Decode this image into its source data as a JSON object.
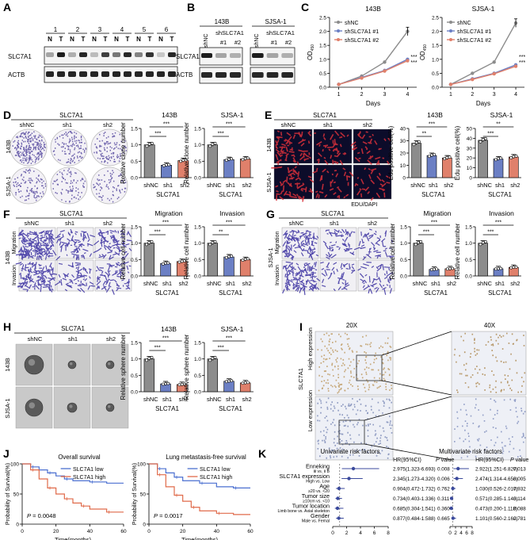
{
  "panels": {
    "A": {
      "label": "A",
      "numbers": [
        "1",
        "2",
        "3",
        "4",
        "5",
        "6"
      ],
      "nt": [
        "N",
        "T"
      ],
      "rows": [
        "SLC7A1",
        "ACTB"
      ]
    },
    "B": {
      "label": "B",
      "cell1": "143B",
      "cell2": "SJSA-1",
      "lanes": [
        "shNC",
        "shSLC7A1",
        "#1",
        "#2"
      ],
      "rows": [
        "SLC7A1",
        "ACTB"
      ]
    },
    "C": {
      "label": "C",
      "title1": "143B",
      "title2": "SJSA-1",
      "legend": [
        "shNC",
        "shSLC7A1 #1",
        "shSLC7A1 #2"
      ],
      "xlabel": "Days",
      "ylabel": "OD450",
      "sig": "***"
    },
    "D": {
      "label": "D",
      "title": "SLC7A1",
      "cols": [
        "shNC",
        "sh1",
        "sh2"
      ],
      "rows": [
        "143B",
        "SJSA-1"
      ],
      "ylabel": "Relative clone number",
      "xlabel": "SLC7A1",
      "t1": "143B",
      "t2": "SJSA-1"
    },
    "E": {
      "label": "E",
      "title": "SLC7A1",
      "cols": [
        "shNC",
        "sh1",
        "sh2"
      ],
      "rows": [
        "143B",
        "SJSA-1"
      ],
      "stain1": "EDU",
      "stain2": "/DAPI",
      "ylabel": "Edu positive cell(%)",
      "xlabel": "SLC7A1",
      "t1": "143B",
      "t2": "SJSA-1"
    },
    "F": {
      "label": "F",
      "title": "SLC7A1",
      "cols": [
        "shNC",
        "sh1",
        "sh2"
      ],
      "cell": "143B",
      "rows": [
        "Migration",
        "Invasion"
      ],
      "ylabel": "Relative cell number",
      "xlabel": "SLC7A1",
      "t1": "Migration",
      "t2": "Invasion"
    },
    "G": {
      "label": "G",
      "title": "SLC7A1",
      "cols": [
        "shNC",
        "sh1",
        "sh2"
      ],
      "cell": "SJSA-1",
      "rows": [
        "Migration",
        "Invasion"
      ],
      "ylabel": "Relative cell number",
      "xlabel": "SLC7A1",
      "t1": "Migration",
      "t2": "Invasion"
    },
    "H": {
      "label": "H",
      "title": "SLC7A1",
      "cols": [
        "shNC",
        "sh1",
        "sh2"
      ],
      "rows": [
        "143B",
        "SJSA-1"
      ],
      "ylabel": "Relative sphere number",
      "xlabel": "SLC7A1",
      "t1": "143B",
      "t2": "SJSA-1"
    },
    "I": {
      "label": "I",
      "cols": [
        "20X",
        "40X"
      ],
      "side": "SLC7A1",
      "rows": [
        "High expression",
        "Low expression"
      ]
    },
    "J": {
      "label": "J",
      "t1": "Overall survival",
      "t2": "Lung metastasis-free survival",
      "legend": [
        "SLC7A1 low",
        "SLC7A1 high"
      ],
      "ylabel": "Probability of Survival(%)",
      "xlabel": "Time(months)",
      "p1": "= 0.0048",
      "p2": "= 0.0017",
      "pletter": "P"
    },
    "K": {
      "label": "K",
      "t1": "Univariate risk factors",
      "t2": "Multivariate risk factors",
      "hr_head": "HR(95%CI)",
      "p_head": "value",
      "p_letter": "P"
    }
  },
  "colors": {
    "nc": "#8c8c8c",
    "sh1": "#6b7fc4",
    "sh2": "#e0806b",
    "low": "#4a6fd0",
    "high": "#e06a4a",
    "stain": "#3a2fa0"
  },
  "chart_data": [
    {
      "id": "C-143B",
      "type": "line",
      "title": "143B",
      "xlabel": "Days",
      "ylabel": "OD450",
      "x": [
        1,
        2,
        3,
        4
      ],
      "ylim": [
        0,
        2.5
      ],
      "yticks": [
        0,
        0.5,
        1.0,
        1.5,
        2.0,
        2.5
      ],
      "series": [
        {
          "name": "shNC",
          "values": [
            0.1,
            0.4,
            0.9,
            2.0
          ]
        },
        {
          "name": "shSLC7A1 #1",
          "values": [
            0.1,
            0.35,
            0.6,
            1.0
          ]
        },
        {
          "name": "shSLC7A1 #2",
          "values": [
            0.1,
            0.33,
            0.58,
            0.95
          ]
        }
      ]
    },
    {
      "id": "C-SJSA1",
      "type": "line",
      "title": "SJSA-1",
      "xlabel": "Days",
      "ylabel": "OD450",
      "x": [
        1,
        2,
        3,
        4
      ],
      "ylim": [
        0,
        2.5
      ],
      "yticks": [
        0,
        0.5,
        1.0,
        1.5,
        2.0,
        2.5
      ],
      "series": [
        {
          "name": "shNC",
          "values": [
            0.1,
            0.5,
            0.9,
            2.3
          ]
        },
        {
          "name": "shSLC7A1 #1",
          "values": [
            0.1,
            0.3,
            0.5,
            0.8
          ]
        },
        {
          "name": "shSLC7A1 #2",
          "values": [
            0.1,
            0.28,
            0.48,
            0.75
          ]
        }
      ]
    },
    {
      "id": "D-143B",
      "type": "bar",
      "title": "143B",
      "categories": [
        "shNC",
        "sh1",
        "sh2"
      ],
      "values": [
        1.0,
        0.38,
        0.52
      ],
      "ylim": [
        0,
        1.5
      ],
      "yticks": [
        0,
        0.5,
        1.0,
        1.5
      ],
      "sig": [
        "***",
        "***"
      ]
    },
    {
      "id": "D-SJSA1",
      "type": "bar",
      "title": "SJSA-1",
      "categories": [
        "shNC",
        "sh1",
        "sh2"
      ],
      "values": [
        1.0,
        0.55,
        0.57
      ],
      "ylim": [
        0,
        1.5
      ],
      "yticks": [
        0,
        0.5,
        1.0,
        1.5
      ],
      "sig": [
        "***",
        "***"
      ]
    },
    {
      "id": "E-143B",
      "type": "bar",
      "title": "143B",
      "categories": [
        "shNC",
        "sh1",
        "sh2"
      ],
      "values": [
        28,
        18,
        16
      ],
      "ylim": [
        0,
        40
      ],
      "yticks": [
        0,
        10,
        20,
        30,
        40
      ],
      "sig": [
        "***",
        "**"
      ]
    },
    {
      "id": "E-SJSA1",
      "type": "bar",
      "title": "SJSA-1",
      "categories": [
        "shNC",
        "sh1",
        "sh2"
      ],
      "values": [
        38,
        19,
        21
      ],
      "ylim": [
        0,
        50
      ],
      "yticks": [
        0,
        10,
        20,
        30,
        40,
        50
      ],
      "sig": [
        "**",
        "***"
      ]
    },
    {
      "id": "F-Migration",
      "type": "bar",
      "title": "Migration",
      "categories": [
        "shNC",
        "sh1",
        "sh2"
      ],
      "values": [
        1.0,
        0.38,
        0.44
      ],
      "ylim": [
        0,
        1.5
      ],
      "yticks": [
        0,
        0.5,
        1.0,
        1.5
      ],
      "sig": [
        "***",
        "***"
      ]
    },
    {
      "id": "F-Invasion",
      "type": "bar",
      "title": "Invasion",
      "categories": [
        "shNC",
        "sh1",
        "sh2"
      ],
      "values": [
        1.0,
        0.58,
        0.5
      ],
      "ylim": [
        0,
        1.5
      ],
      "yticks": [
        0,
        0.5,
        1.0,
        1.5
      ],
      "sig": [
        "***",
        "**"
      ]
    },
    {
      "id": "G-Migration",
      "type": "bar",
      "title": "Migration",
      "categories": [
        "shNC",
        "sh1",
        "sh2"
      ],
      "values": [
        1.0,
        0.2,
        0.22
      ],
      "ylim": [
        0,
        1.5
      ],
      "yticks": [
        0,
        0.5,
        1.0,
        1.5
      ],
      "sig": [
        "***",
        "***"
      ]
    },
    {
      "id": "G-Invasion",
      "type": "bar",
      "title": "Invasion",
      "categories": [
        "shNC",
        "sh1",
        "sh2"
      ],
      "values": [
        1.0,
        0.22,
        0.26
      ],
      "ylim": [
        0,
        1.5
      ],
      "yticks": [
        0,
        0.5,
        1.0,
        1.5
      ],
      "sig": [
        "***",
        "***"
      ]
    },
    {
      "id": "H-143B",
      "type": "bar",
      "title": "143B",
      "categories": [
        "shNC",
        "sh1",
        "sh2"
      ],
      "values": [
        1.0,
        0.24,
        0.22
      ],
      "ylim": [
        0,
        1.5
      ],
      "yticks": [
        0,
        0.5,
        1.0,
        1.5
      ],
      "sig": [
        "***",
        "***"
      ]
    },
    {
      "id": "H-SJSA1",
      "type": "bar",
      "title": "SJSA-1",
      "categories": [
        "shNC",
        "sh1",
        "sh2"
      ],
      "values": [
        1.0,
        0.32,
        0.27
      ],
      "ylim": [
        0,
        1.5
      ],
      "yticks": [
        0,
        0.5,
        1.0,
        1.5
      ],
      "sig": [
        "***",
        "***"
      ]
    },
    {
      "id": "J-OS",
      "type": "line",
      "title": "Overall survival",
      "xlabel": "Time(months)",
      "ylabel": "Probability of Survival(%)",
      "xlim": [
        0,
        60
      ],
      "ylim": [
        0,
        100
      ],
      "xticks": [
        0,
        20,
        40,
        60
      ],
      "yticks": [
        0,
        50,
        100
      ],
      "series": [
        {
          "name": "SLC7A1 low",
          "x": [
            0,
            5,
            10,
            15,
            20,
            25,
            30,
            40,
            50,
            60
          ],
          "values": [
            100,
            95,
            90,
            85,
            80,
            75,
            72,
            70,
            68,
            68
          ]
        },
        {
          "name": "SLC7A1 high",
          "x": [
            0,
            5,
            10,
            15,
            20,
            25,
            30,
            35,
            40,
            50,
            60
          ],
          "values": [
            100,
            90,
            75,
            60,
            50,
            42,
            35,
            30,
            25,
            20,
            20
          ]
        }
      ],
      "p": "0.0048"
    },
    {
      "id": "J-LMFS",
      "type": "line",
      "title": "Lung metastasis-free survival",
      "xlabel": "Time(months)",
      "ylabel": "Probability of Survival(%)",
      "xlim": [
        0,
        60
      ],
      "ylim": [
        0,
        100
      ],
      "xticks": [
        0,
        20,
        40,
        60
      ],
      "yticks": [
        0,
        50,
        100
      ],
      "series": [
        {
          "name": "SLC7A1 low",
          "x": [
            0,
            5,
            10,
            15,
            20,
            30,
            40,
            50,
            60
          ],
          "values": [
            100,
            92,
            85,
            78,
            72,
            68,
            62,
            60,
            60
          ]
        },
        {
          "name": "SLC7A1 high",
          "x": [
            0,
            5,
            10,
            15,
            20,
            25,
            30,
            40,
            50,
            60
          ],
          "values": [
            100,
            82,
            62,
            48,
            38,
            28,
            22,
            18,
            16,
            16
          ]
        }
      ],
      "p": "0.0017"
    },
    {
      "id": "K-uni",
      "type": "forest",
      "title": "Univariate risk factors",
      "xlim": [
        0,
        8
      ],
      "xticks": [
        0,
        2,
        4,
        6,
        8
      ],
      "rows": [
        {
          "name": "Enneking",
          "sub": "Ⅲ vs. Ⅱ B",
          "hr": 2.975,
          "ci": [
            1.323,
            6.693
          ],
          "text": "2.975(1.323-6.693)",
          "p": "0.008"
        },
        {
          "name": "SLC7A1 expression",
          "sub": "High vs. Low",
          "hr": 2.345,
          "ci": [
            1.273,
            4.32
          ],
          "text": "2.345(1.273-4.320)",
          "p": "0.006"
        },
        {
          "name": "Age",
          "sub": "≥20 vs. <20",
          "hr": 0.904,
          "ci": [
            0.472,
            1.732
          ],
          "text": "0.904(0.472-1.732)",
          "p": "0.762"
        },
        {
          "name": "Tumor size",
          "sub": "≥10cm vs. <10",
          "hr": 0.734,
          "ci": [
            0.403,
            1.336
          ],
          "text": "0.734(0.403-1.336)",
          "p": "0.311"
        },
        {
          "name": "Tumor location",
          "sub": "Limb bone vs. Axial skeleton",
          "hr": 0.685,
          "ci": [
            0.304,
            1.541
          ],
          "text": "0.685(0.304-1.541)",
          "p": "0.360"
        },
        {
          "name": "Gender",
          "sub": "Male vs. Femal",
          "hr": 0.877,
          "ci": [
            0.484,
            1.588
          ],
          "text": "0.877(0.484-1.588)",
          "p": "0.665"
        }
      ]
    },
    {
      "id": "K-multi",
      "type": "forest",
      "title": "Multivariate risk factors",
      "xlim": [
        0,
        8
      ],
      "xticks": [
        0,
        2,
        4,
        6,
        8
      ],
      "rows": [
        {
          "hr": 2.922,
          "ci": [
            1.251,
            6.827
          ],
          "text": "2.922(1.251-6.827)",
          "p": "0.013"
        },
        {
          "hr": 2.474,
          "ci": [
            1.314,
            4.658
          ],
          "text": "2.474(1.314-4.658)",
          "p": "0.005"
        },
        {
          "hr": 1.03,
          "ci": [
            0.526,
            2.017
          ],
          "text": "1.030(0.526-2.017)",
          "p": "0.932"
        },
        {
          "hr": 0.571,
          "ci": [
            0.285,
            1.143
          ],
          "text": "0.571(0.285-1.143)",
          "p": "0.114"
        },
        {
          "hr": 0.473,
          "ci": [
            0.2,
            1.118
          ],
          "text": "0.473(0.200-1.118)",
          "p": "0.088"
        },
        {
          "hr": 1.101,
          "ci": [
            0.56,
            2.162
          ],
          "text": "1.101(0.560-2.162)",
          "p": "0.781"
        }
      ]
    }
  ]
}
